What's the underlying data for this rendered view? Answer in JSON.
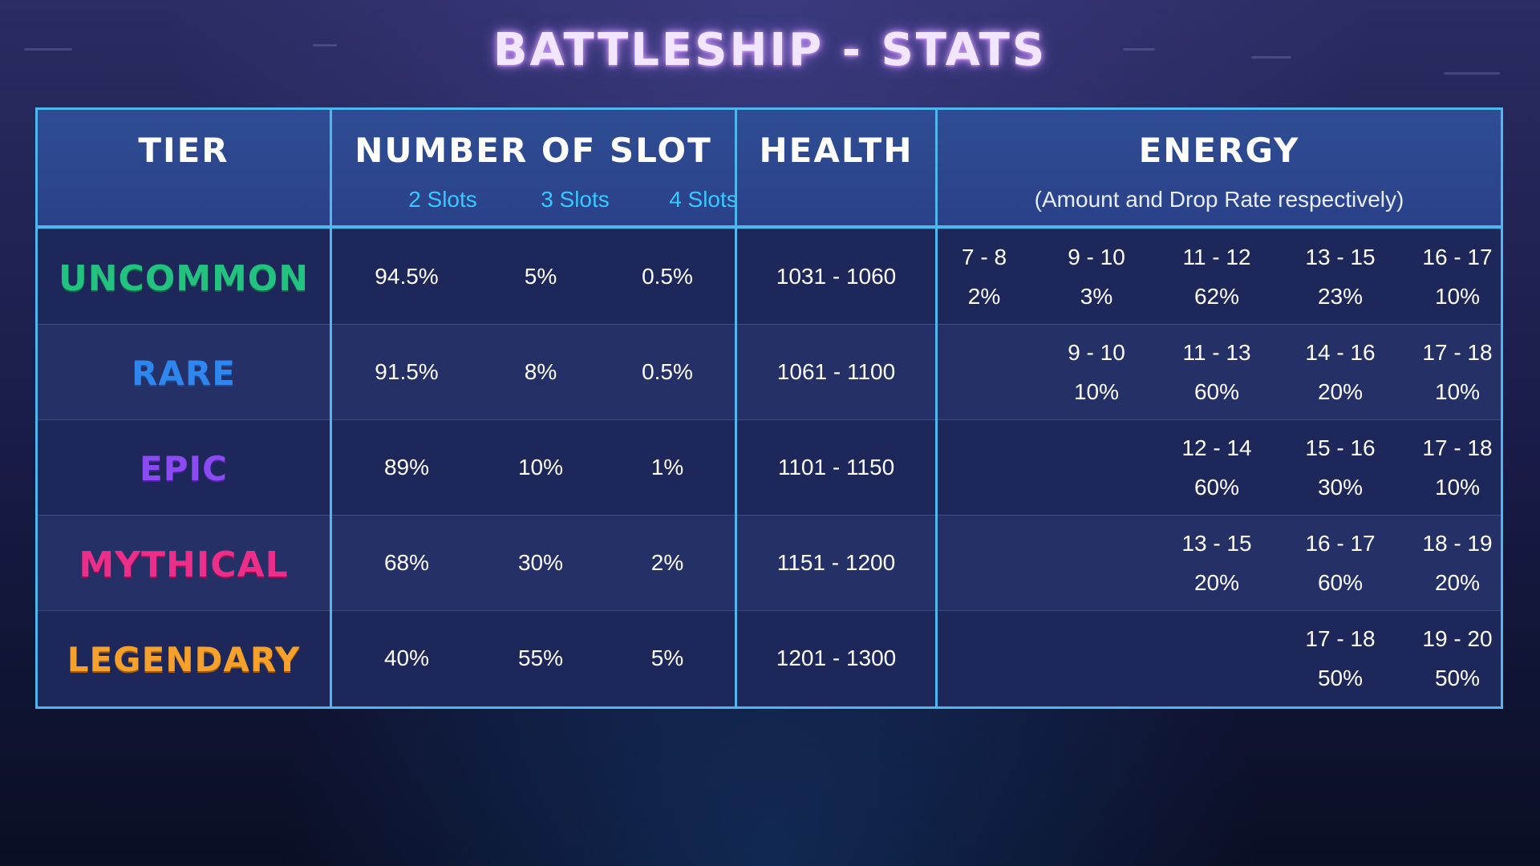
{
  "title": "BATTLESHIP - STATS",
  "headers": {
    "tier": "TIER",
    "slots": "NUMBER OF SLOT",
    "slot_labels": [
      "2 Slots",
      "3 Slots",
      "4 Slots"
    ],
    "health": "HEALTH",
    "energy": "ENERGY",
    "energy_note": "(Amount and Drop Rate respectively)"
  },
  "tiers": [
    {
      "name": "UNCOMMON",
      "color": "#23c281",
      "slots": [
        "94.5%",
        "5%",
        "0.5%"
      ],
      "health": "1031 - 1060",
      "energy": [
        {
          "amount": "7 - 8",
          "rate": "2%"
        },
        {
          "amount": "9 - 10",
          "rate": "3%"
        },
        {
          "amount": "11 - 12",
          "rate": "62%"
        },
        {
          "amount": "13 - 15",
          "rate": "23%"
        },
        {
          "amount": "16 - 17",
          "rate": "10%"
        }
      ]
    },
    {
      "name": "RARE",
      "color": "#2e86ee",
      "slots": [
        "91.5%",
        "8%",
        "0.5%"
      ],
      "health": "1061 - 1100",
      "energy": [
        {
          "amount": "",
          "rate": ""
        },
        {
          "amount": "9 - 10",
          "rate": "10%"
        },
        {
          "amount": "11 - 13",
          "rate": "60%"
        },
        {
          "amount": "14 - 16",
          "rate": "20%"
        },
        {
          "amount": "17 - 18",
          "rate": "10%"
        }
      ]
    },
    {
      "name": "EPIC",
      "color": "#8a4bf2",
      "slots": [
        "89%",
        "10%",
        "1%"
      ],
      "health": "1101 - 1150",
      "energy": [
        {
          "amount": "",
          "rate": ""
        },
        {
          "amount": "",
          "rate": ""
        },
        {
          "amount": "12 - 14",
          "rate": "60%"
        },
        {
          "amount": "15 - 16",
          "rate": "30%"
        },
        {
          "amount": "17 - 18",
          "rate": "10%"
        }
      ]
    },
    {
      "name": "MYTHICAL",
      "color": "#ea2e8a",
      "slots": [
        "68%",
        "30%",
        "2%"
      ],
      "health": "1151 - 1200",
      "energy": [
        {
          "amount": "",
          "rate": ""
        },
        {
          "amount": "",
          "rate": ""
        },
        {
          "amount": "13 - 15",
          "rate": "20%"
        },
        {
          "amount": "16 - 17",
          "rate": "60%"
        },
        {
          "amount": "18 - 19",
          "rate": "20%"
        }
      ]
    },
    {
      "name": "LEGENDARY",
      "color": "#f6a12b",
      "slots": [
        "40%",
        "55%",
        "5%"
      ],
      "health": "1201 - 1300",
      "energy": [
        {
          "amount": "",
          "rate": ""
        },
        {
          "amount": "",
          "rate": ""
        },
        {
          "amount": "",
          "rate": ""
        },
        {
          "amount": "17 - 18",
          "rate": "50%"
        },
        {
          "amount": "19 - 20",
          "rate": "50%"
        }
      ]
    }
  ]
}
